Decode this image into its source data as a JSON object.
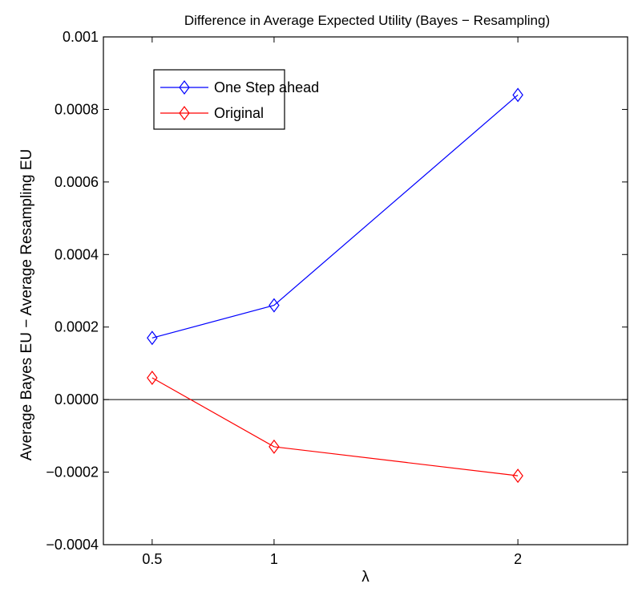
{
  "chart_data": {
    "type": "line",
    "title": "Difference in Average Expected Utility (Bayes − Resampling)",
    "xlabel": "λ",
    "ylabel": "Average Bayes EU − Average Resampling EU",
    "x": [
      0.5,
      1,
      2
    ],
    "xlim": [
      0.3,
      2.45
    ],
    "ylim": [
      -0.0004,
      0.001
    ],
    "xticks": [
      0.5,
      1,
      2
    ],
    "xtick_labels": [
      "0.5",
      "1",
      "2"
    ],
    "yticks": [
      -0.0004,
      -0.0002,
      0.0,
      0.0002,
      0.0004,
      0.0006,
      0.0008,
      0.001
    ],
    "ytick_labels": [
      "−0.0004",
      "−0.0002",
      "0.0000",
      "0.0002",
      "0.0004",
      "0.0006",
      "0.0008",
      "0.001"
    ],
    "reference_line_y": 0,
    "grid": false,
    "legend_position": "top-left",
    "series": [
      {
        "name": "One Step ahead",
        "color": "#0000ff",
        "marker": "diamond",
        "values": [
          0.00017,
          0.00026,
          0.00084
        ]
      },
      {
        "name": "Original",
        "color": "#ff0000",
        "marker": "diamond",
        "values": [
          6e-05,
          -0.00013,
          -0.00021
        ]
      }
    ]
  }
}
